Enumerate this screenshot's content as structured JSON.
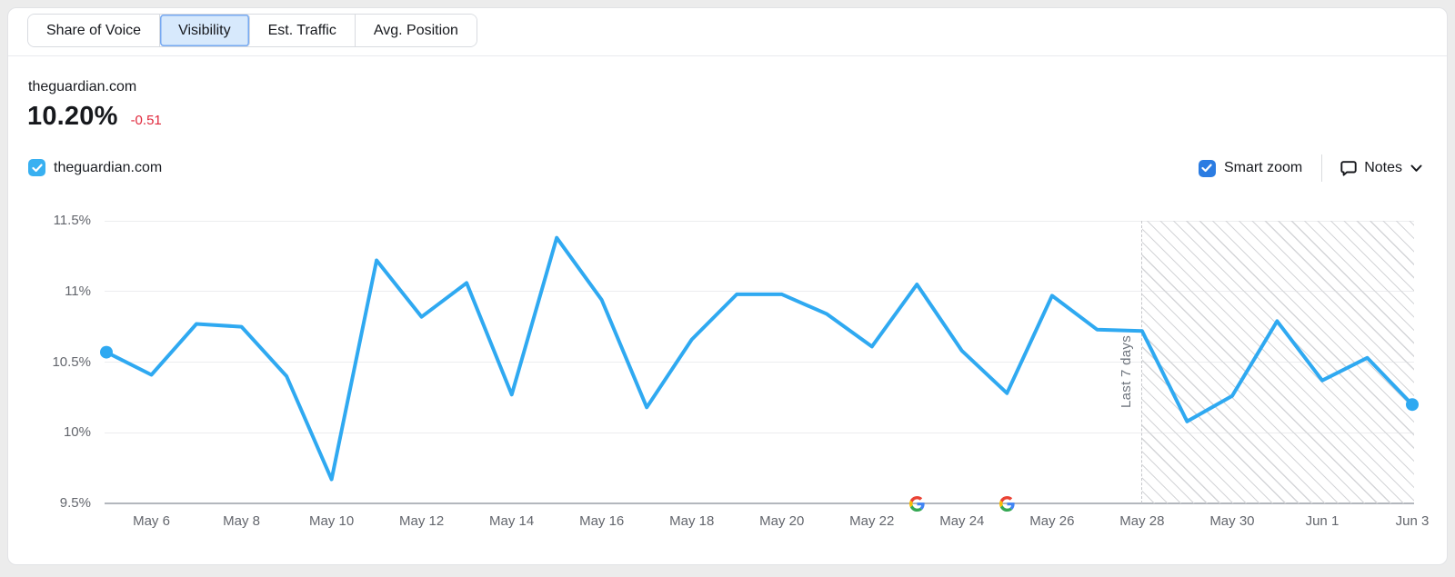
{
  "tabs": {
    "items": [
      {
        "label": "Share of Voice",
        "selected": false
      },
      {
        "label": "Visibility",
        "selected": true
      },
      {
        "label": "Est. Traffic",
        "selected": false
      },
      {
        "label": "Avg. Position",
        "selected": false
      }
    ]
  },
  "header": {
    "domain": "theguardian.com",
    "value": "10.20%",
    "change": "-0.51",
    "change_color": "#e0283c"
  },
  "legend": {
    "label": "theguardian.com",
    "checked": true,
    "color": "#38b0f1"
  },
  "controls": {
    "smart_zoom_label": "Smart zoom",
    "smart_zoom_checked": true,
    "notes_label": "Notes"
  },
  "chart_data": {
    "type": "line",
    "title": "Visibility - theguardian.com",
    "x": [
      "May 5",
      "May 6",
      "May 7",
      "May 8",
      "May 9",
      "May 10",
      "May 11",
      "May 12",
      "May 13",
      "May 14",
      "May 15",
      "May 16",
      "May 17",
      "May 18",
      "May 19",
      "May 20",
      "May 21",
      "May 22",
      "May 23",
      "May 24",
      "May 25",
      "May 26",
      "May 27",
      "May 28",
      "May 29",
      "May 30",
      "May 31",
      "Jun 1",
      "Jun 2",
      "Jun 3"
    ],
    "series": [
      {
        "name": "theguardian.com",
        "color": "#2fa9f1",
        "values": [
          10.57,
          10.41,
          10.77,
          10.75,
          10.4,
          9.67,
          11.22,
          10.82,
          11.06,
          10.27,
          11.38,
          10.94,
          10.18,
          10.66,
          10.98,
          10.98,
          10.84,
          10.61,
          11.05,
          10.58,
          10.28,
          10.97,
          10.73,
          10.72,
          10.08,
          10.26,
          10.79,
          10.37,
          10.53,
          10.2
        ]
      }
    ],
    "ylim": [
      9.5,
      11.5
    ],
    "ytick_labels": [
      "11.5%",
      "11%",
      "10.5%",
      "10%",
      "9.5%"
    ],
    "xtick_labels": [
      "May 6",
      "May 8",
      "May 10",
      "May 12",
      "May 14",
      "May 16",
      "May 18",
      "May 20",
      "May 22",
      "May 24",
      "May 26",
      "May 28",
      "May 30",
      "Jun 1",
      "Jun 3"
    ],
    "grid": true,
    "legend_position": "top-left",
    "endpoint_markers": true,
    "annotations": {
      "google_update_dates": [
        "May 23",
        "May 25"
      ],
      "forecast_region": {
        "label": "Last 7 days",
        "start": "May 28",
        "end": "Jun 3"
      }
    }
  }
}
